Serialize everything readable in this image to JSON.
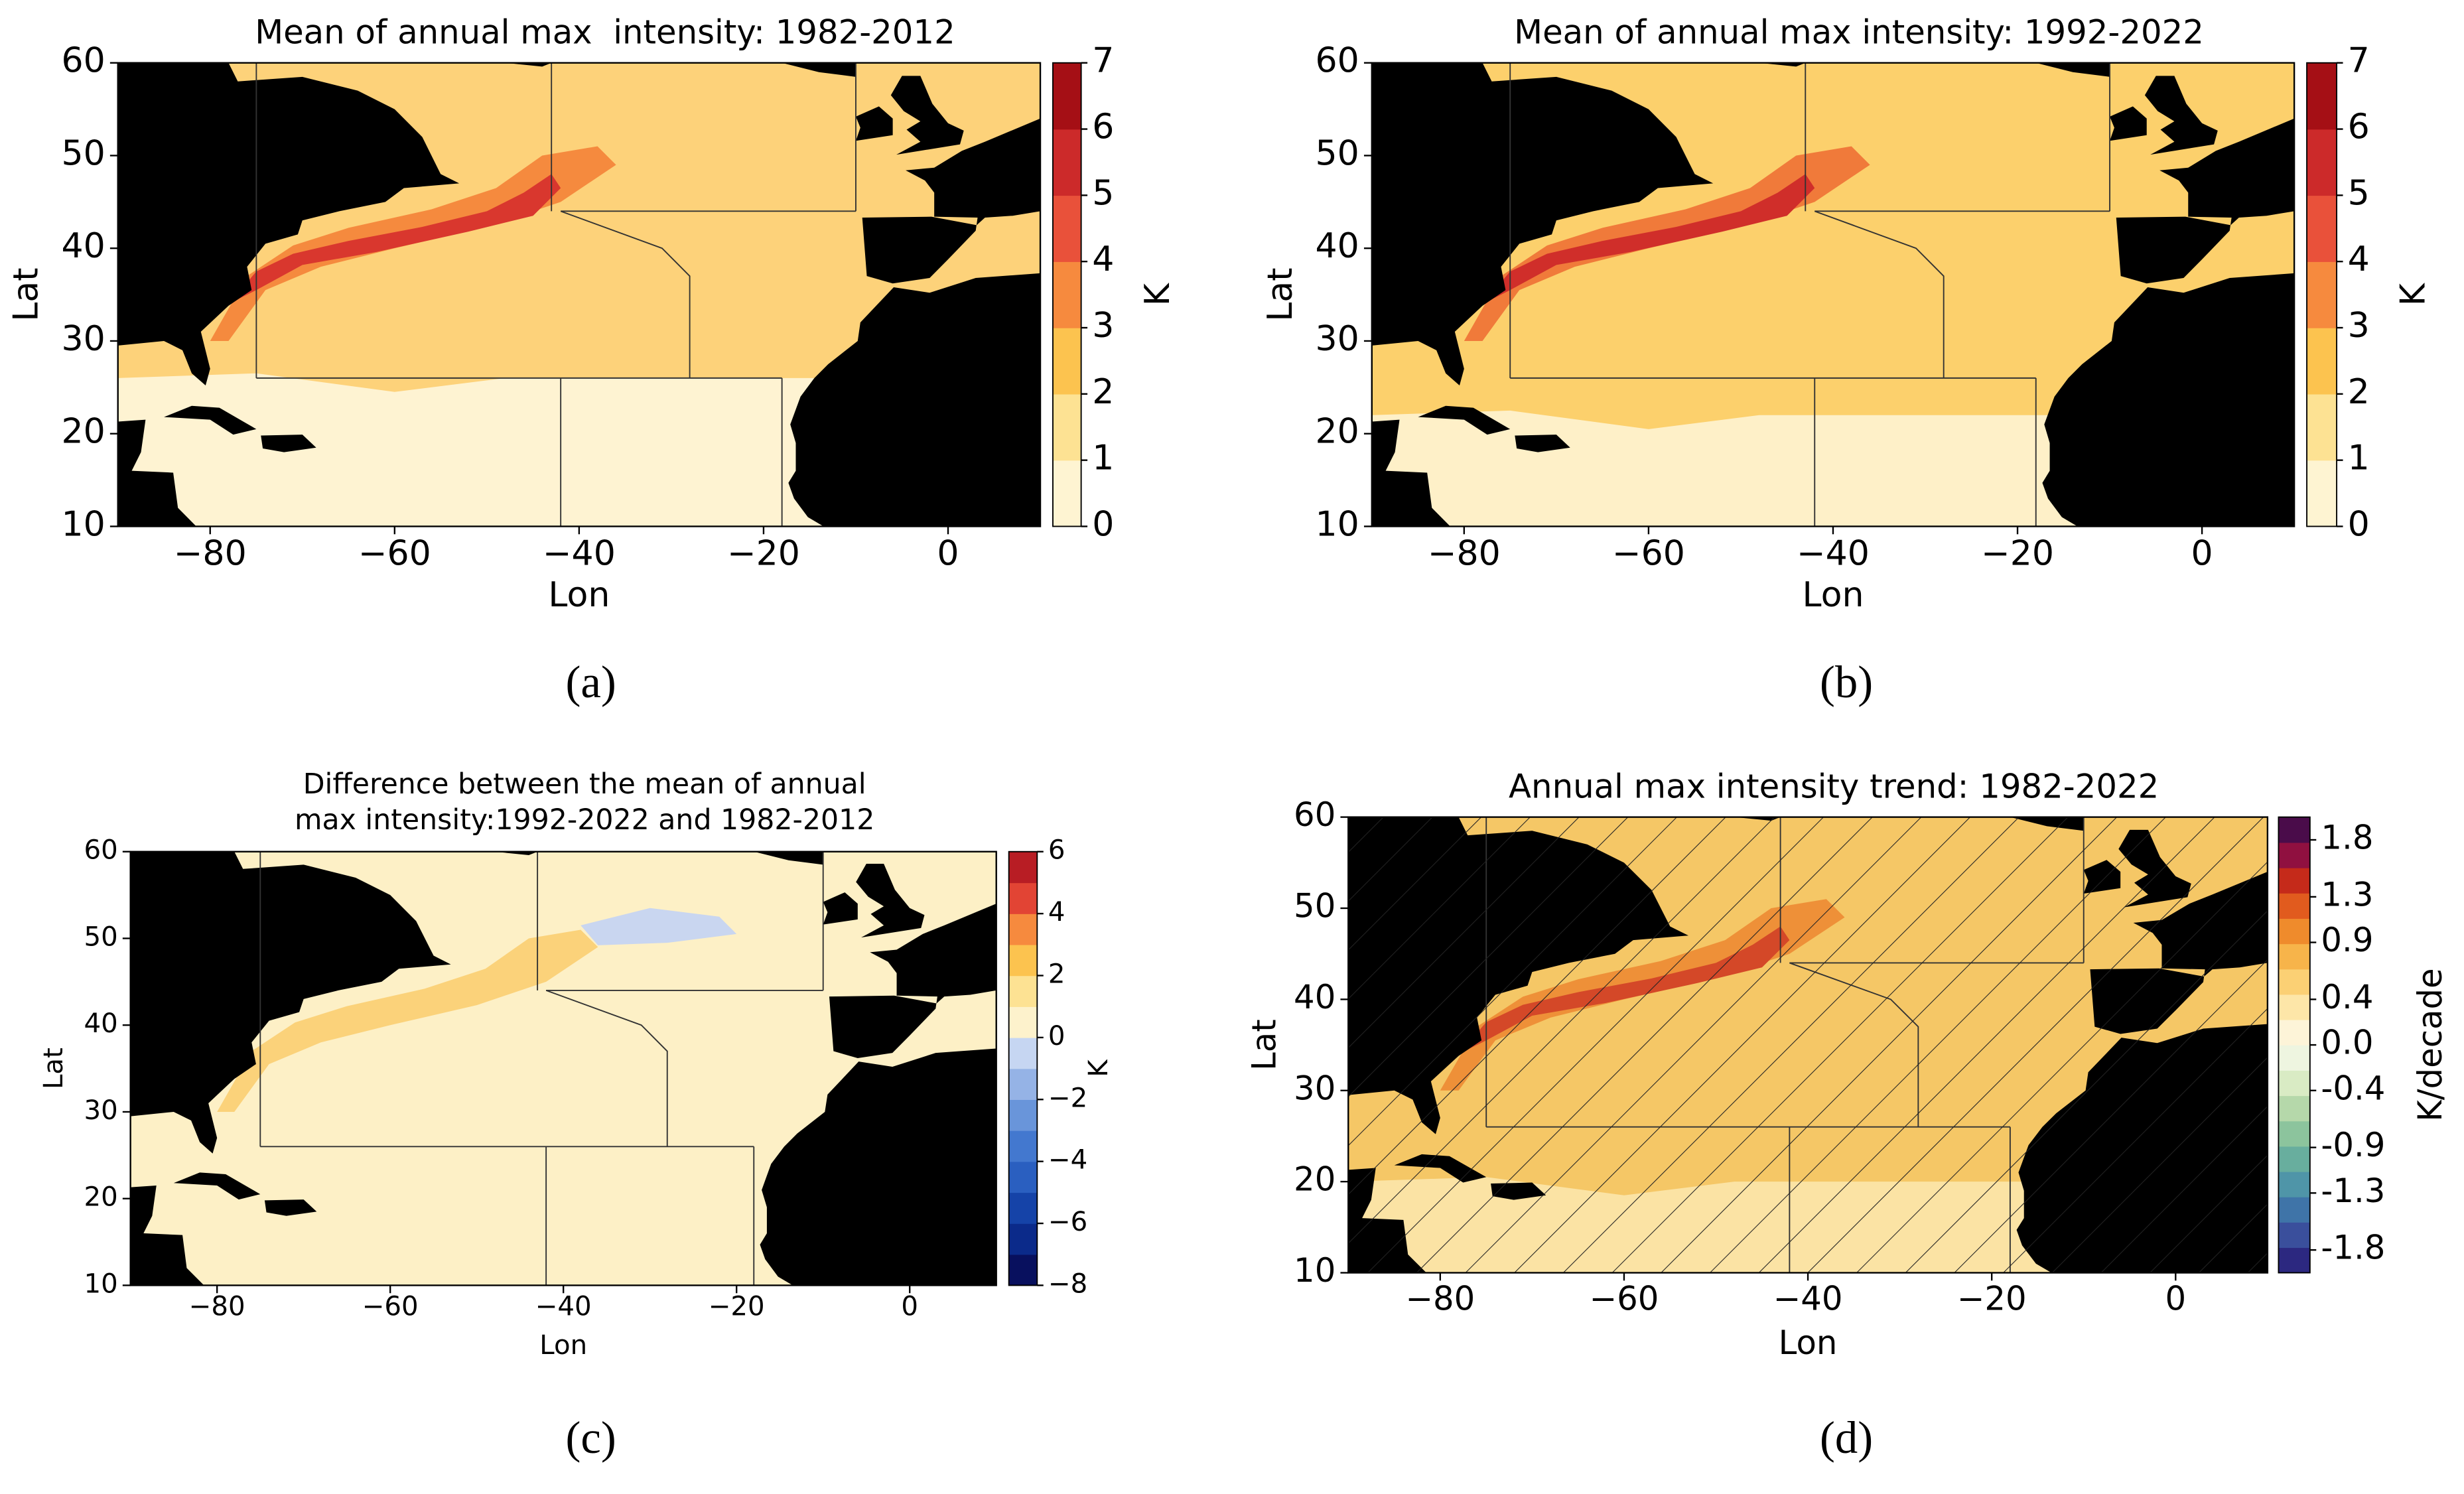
{
  "chart_data": [
    {
      "type": "map",
      "title": [
        "Mean of annual max  intensity: 1982-2012"
      ],
      "xlabel": "Lon",
      "ylabel": "Lat",
      "caption": "(a)",
      "xlim": [
        -90,
        10
      ],
      "ylim": [
        10,
        60
      ],
      "xticks": [
        {
          "value": -80,
          "label": "−80"
        },
        {
          "value": -60,
          "label": "−60"
        },
        {
          "value": -40,
          "label": "−40"
        },
        {
          "value": -20,
          "label": "−20"
        },
        0
      ],
      "yticks": [
        10,
        20,
        30,
        40,
        50,
        60
      ],
      "colorbar": {
        "label": "K",
        "lim": [
          0,
          7
        ],
        "ticks": [
          0,
          1,
          2,
          3,
          4,
          5,
          6,
          7
        ],
        "colors": [
          "#fef4d2",
          "#fde293",
          "#fcc34f",
          "#f68a3e",
          "#e9513a",
          "#cc2a2a",
          "#a50f15"
        ]
      }
    },
    {
      "type": "map",
      "title": [
        "Mean of annual max intensity: 1992-2022"
      ],
      "xlabel": "Lon",
      "ylabel": "Lat",
      "caption": "(b)",
      "xlim": [
        -90,
        10
      ],
      "ylim": [
        10,
        60
      ],
      "xticks": [
        {
          "value": -80,
          "label": "−80"
        },
        {
          "value": -60,
          "label": "−60"
        },
        {
          "value": -40,
          "label": "−40"
        },
        {
          "value": -20,
          "label": "−20"
        },
        0
      ],
      "yticks": [
        10,
        20,
        30,
        40,
        50,
        60
      ],
      "colorbar": {
        "label": "K",
        "lim": [
          0,
          7
        ],
        "ticks": [
          0,
          1,
          2,
          3,
          4,
          5,
          6,
          7
        ],
        "colors": [
          "#fef4d2",
          "#fde293",
          "#fcc34f",
          "#f68a3e",
          "#e9513a",
          "#cc2a2a",
          "#a50f15"
        ]
      }
    },
    {
      "type": "map",
      "title": [
        "Difference between the mean of annual",
        "max intensity:1992-2022 and 1982-2012"
      ],
      "xlabel": "Lon",
      "ylabel": "Lat",
      "caption": "(c)",
      "xlim": [
        -90,
        10
      ],
      "ylim": [
        10,
        60
      ],
      "xticks": [
        {
          "value": -80,
          "label": "−80"
        },
        {
          "value": -60,
          "label": "−60"
        },
        {
          "value": -40,
          "label": "−40"
        },
        {
          "value": -20,
          "label": "−20"
        },
        0
      ],
      "yticks": [
        10,
        20,
        30,
        40,
        50,
        60
      ],
      "colorbar": {
        "label": "K",
        "lim": [
          -8,
          6
        ],
        "ticks": [
          {
            "value": -8,
            "label": "−8"
          },
          {
            "value": -6,
            "label": "−6"
          },
          {
            "value": -4,
            "label": "−4"
          },
          {
            "value": -2,
            "label": "−2"
          },
          0,
          2,
          4,
          6
        ],
        "colors": [
          "#08105e",
          "#0b2a8a",
          "#1543a8",
          "#2a5fc0",
          "#4378cf",
          "#6995da",
          "#95b3e6",
          "#c6d6f2",
          "#fdf2cc",
          "#fde293",
          "#fcc34f",
          "#f68a3e",
          "#e24434",
          "#b81d24"
        ]
      }
    },
    {
      "type": "map",
      "title": [
        "Annual max intensity trend: 1982-2022"
      ],
      "xlabel": "Lon",
      "ylabel": "Lat",
      "caption": "(d)",
      "hatch": true,
      "xlim": [
        -90,
        10
      ],
      "ylim": [
        10,
        60
      ],
      "xticks": [
        {
          "value": -80,
          "label": "−80"
        },
        {
          "value": -60,
          "label": "−60"
        },
        {
          "value": -40,
          "label": "−40"
        },
        {
          "value": -20,
          "label": "−20"
        },
        0
      ],
      "yticks": [
        10,
        20,
        30,
        40,
        50,
        60
      ],
      "colorbar": {
        "label": "K/decade",
        "lim": [
          -2,
          2
        ],
        "ticks": [
          {
            "value": -1.8,
            "label": "-1.8"
          },
          {
            "value": -1.3,
            "label": "-1.3"
          },
          {
            "value": -0.9,
            "label": "-0.9"
          },
          {
            "value": -0.4,
            "label": "-0.4"
          },
          {
            "value": 0,
            "label": "0.0"
          },
          0.4,
          0.9,
          1.3,
          1.8
        ],
        "colors": [
          "#2c2880",
          "#3a4f9c",
          "#3f74a8",
          "#4f95a8",
          "#68ae9e",
          "#8cc49d",
          "#b5d8aa",
          "#d9ebc4",
          "#eef5e0",
          "#fdf4d8",
          "#fde6a8",
          "#fbd074",
          "#f7b44a",
          "#ef8b2c",
          "#e15b1e",
          "#c52a1a",
          "#901040",
          "#4a0c4a"
        ]
      }
    }
  ]
}
